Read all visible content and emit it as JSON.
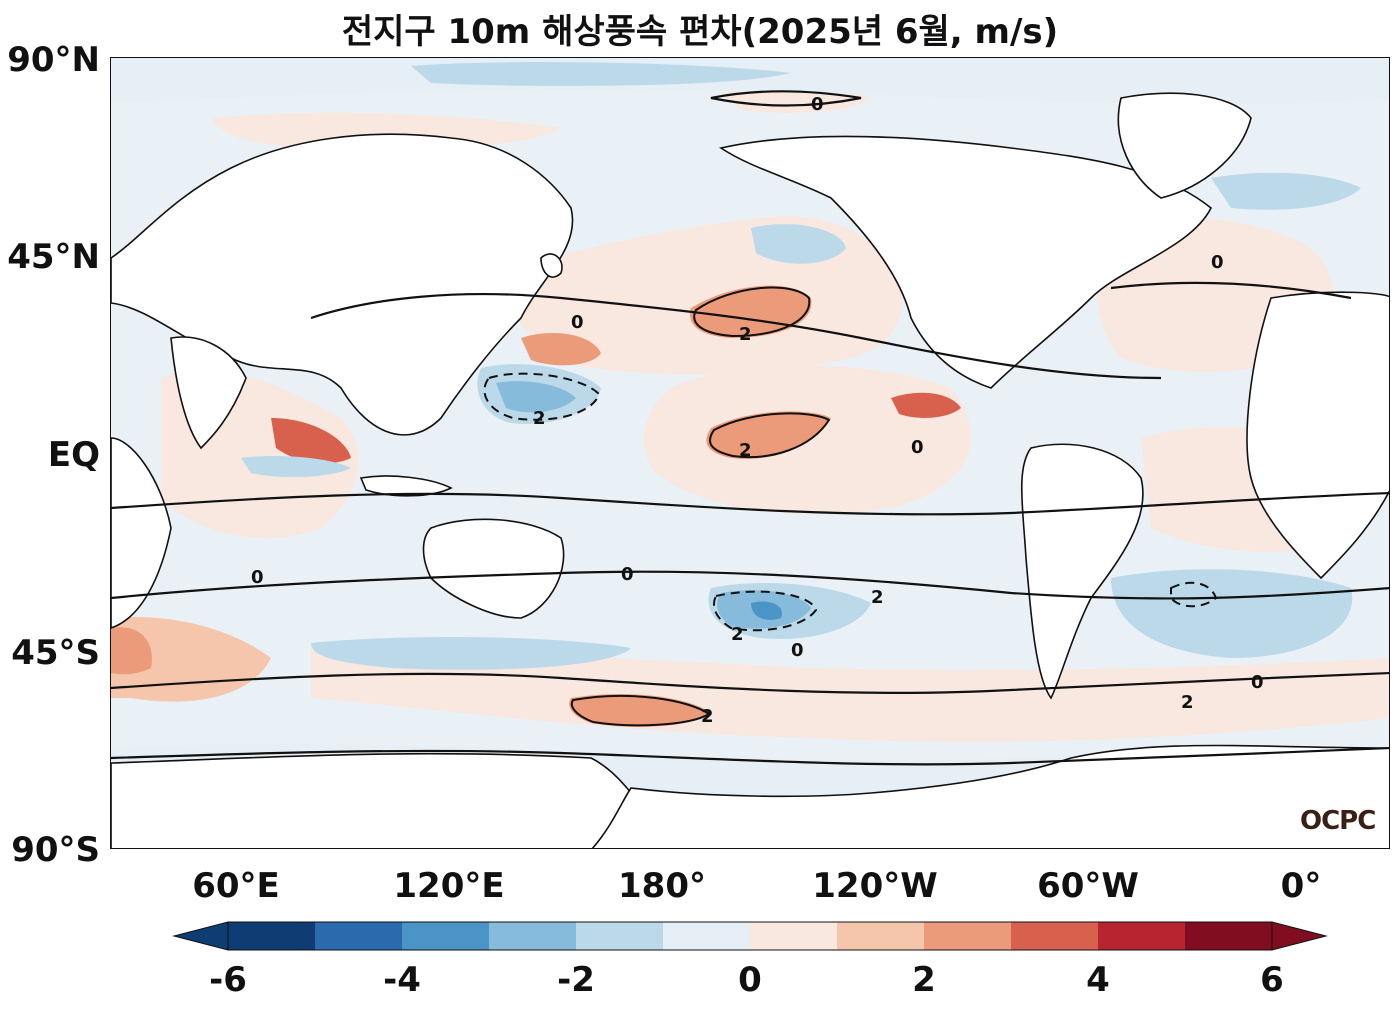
{
  "title": "전지구 10m 해상풍속 편차(2025년 6월, m/s)",
  "lat_labels": [
    "90°N",
    "45°N",
    "EQ",
    "45°S",
    "90°S"
  ],
  "lon_labels": [
    "60°E",
    "120°E",
    "180°",
    "120°W",
    "60°W",
    "0°"
  ],
  "contour_label": "0",
  "contour_label_pos": "2",
  "contour_label_neg": "2",
  "logo": "OCPC",
  "colorbar": {
    "ticks": [
      "-6",
      "-4",
      "-2",
      "0",
      "2",
      "4",
      "6"
    ],
    "colors": [
      "#0f3d73",
      "#2a6aad",
      "#4b94c6",
      "#86bbdb",
      "#bcd9ea",
      "#e6eff5",
      "#f8e8e0",
      "#f6c6ac",
      "#ec9b7a",
      "#d7614d",
      "#b82430",
      "#800d20"
    ]
  }
}
